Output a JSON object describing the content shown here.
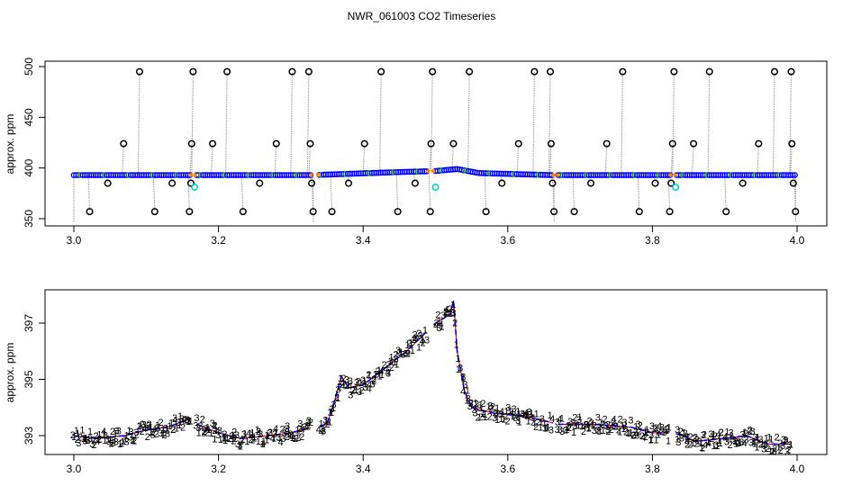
{
  "figure": {
    "title": "NWR_061003  CO2 Timeseries"
  },
  "chart_data": [
    {
      "type": "scatter",
      "panel": "top",
      "ylabel": "approx. ppm",
      "xlim": [
        3.0,
        4.0
      ],
      "ylim": [
        347,
        502
      ],
      "x_ticks": [
        3.0,
        3.2,
        3.4,
        3.6,
        3.8,
        4.0
      ],
      "x_tick_labels": [
        "3.0",
        "3.2",
        "3.4",
        "3.6",
        "3.8",
        "4.0"
      ],
      "y_ticks": [
        350,
        400,
        450,
        500
      ],
      "y_tick_labels": [
        "350",
        "400",
        "450",
        "500"
      ],
      "baseline": [
        [
          3.0,
          393
        ],
        [
          3.33,
          393
        ],
        [
          3.45,
          396
        ],
        [
          3.5,
          397
        ],
        [
          3.53,
          399
        ],
        [
          3.56,
          395
        ],
        [
          3.66,
          393
        ],
        [
          3.83,
          393
        ],
        [
          4.0,
          393
        ]
      ],
      "baseline_gaps": [
        [
          3.162,
          3.168
        ],
        [
          3.328,
          3.338
        ],
        [
          3.49,
          3.497
        ],
        [
          3.663,
          3.669
        ],
        [
          3.825,
          3.832
        ]
      ],
      "flag_points": [
        {
          "x": 3.02,
          "y": 357
        },
        {
          "x": 3.045,
          "y": 385
        },
        {
          "x": 3.067,
          "y": 424
        },
        {
          "x": 3.089,
          "y": 495
        },
        {
          "x": 3.11,
          "y": 357
        },
        {
          "x": 3.134,
          "y": 385
        },
        {
          "x": 3.158,
          "y": 357
        },
        {
          "x": 3.16,
          "y": 385
        },
        {
          "x": 3.161,
          "y": 424
        },
        {
          "x": 3.163,
          "y": 495
        },
        {
          "x": 3.19,
          "y": 424
        },
        {
          "x": 3.21,
          "y": 495
        },
        {
          "x": 3.232,
          "y": 357
        },
        {
          "x": 3.255,
          "y": 385
        },
        {
          "x": 3.278,
          "y": 424
        },
        {
          "x": 3.3,
          "y": 495
        },
        {
          "x": 3.323,
          "y": 495
        },
        {
          "x": 3.325,
          "y": 424
        },
        {
          "x": 3.327,
          "y": 385
        },
        {
          "x": 3.329,
          "y": 357
        },
        {
          "x": 3.355,
          "y": 357
        },
        {
          "x": 3.378,
          "y": 385
        },
        {
          "x": 3.4,
          "y": 424
        },
        {
          "x": 3.423,
          "y": 495
        },
        {
          "x": 3.446,
          "y": 357
        },
        {
          "x": 3.47,
          "y": 385
        },
        {
          "x": 3.491,
          "y": 357
        },
        {
          "x": 3.492,
          "y": 424
        },
        {
          "x": 3.494,
          "y": 495
        },
        {
          "x": 3.523,
          "y": 424
        },
        {
          "x": 3.545,
          "y": 495
        },
        {
          "x": 3.568,
          "y": 357
        },
        {
          "x": 3.59,
          "y": 385
        },
        {
          "x": 3.613,
          "y": 424
        },
        {
          "x": 3.635,
          "y": 495
        },
        {
          "x": 3.657,
          "y": 495
        },
        {
          "x": 3.658,
          "y": 424
        },
        {
          "x": 3.66,
          "y": 385
        },
        {
          "x": 3.662,
          "y": 357
        },
        {
          "x": 3.69,
          "y": 357
        },
        {
          "x": 3.713,
          "y": 385
        },
        {
          "x": 3.735,
          "y": 424
        },
        {
          "x": 3.757,
          "y": 495
        },
        {
          "x": 3.78,
          "y": 357
        },
        {
          "x": 3.802,
          "y": 385
        },
        {
          "x": 3.822,
          "y": 357
        },
        {
          "x": 3.824,
          "y": 385
        },
        {
          "x": 3.826,
          "y": 424
        },
        {
          "x": 3.828,
          "y": 495
        },
        {
          "x": 3.855,
          "y": 424
        },
        {
          "x": 3.877,
          "y": 495
        },
        {
          "x": 3.9,
          "y": 357
        },
        {
          "x": 3.923,
          "y": 385
        },
        {
          "x": 3.945,
          "y": 424
        },
        {
          "x": 3.967,
          "y": 495
        },
        {
          "x": 3.99,
          "y": 495
        },
        {
          "x": 3.991,
          "y": 424
        },
        {
          "x": 3.993,
          "y": 385
        },
        {
          "x": 3.996,
          "y": 357
        }
      ],
      "cyan_points": [
        {
          "x": 3.167,
          "y": 381
        },
        {
          "x": 3.5,
          "y": 381
        },
        {
          "x": 3.832,
          "y": 381
        }
      ],
      "colors": {
        "main": "#0000ff",
        "secondary": "#00aa00",
        "orange": "#ff8c00",
        "flag": "#000000",
        "spike": "#999999",
        "cyan": "#00cccc"
      }
    },
    {
      "type": "scatter",
      "panel": "bottom",
      "ylabel": "approx. ppm",
      "xlim": [
        3.0,
        4.0
      ],
      "ylim": [
        392.3,
        398.2
      ],
      "x_ticks": [
        3.0,
        3.2,
        3.4,
        3.6,
        3.8,
        4.0
      ],
      "x_tick_labels": [
        "3.0",
        "3.2",
        "3.4",
        "3.6",
        "3.8",
        "4.0"
      ],
      "y_ticks": [
        393,
        395,
        397
      ],
      "y_tick_labels": [
        "393",
        "395",
        "397"
      ],
      "series_glyphs": [
        "1",
        "2",
        "3",
        "4"
      ],
      "trend": [
        [
          3.0,
          393.0
        ],
        [
          3.03,
          392.9
        ],
        [
          3.07,
          393.0
        ],
        [
          3.1,
          393.2
        ],
        [
          3.13,
          393.3
        ],
        [
          3.16,
          393.6
        ],
        [
          3.17,
          393.4
        ],
        [
          3.2,
          393.1
        ],
        [
          3.23,
          392.9
        ],
        [
          3.27,
          393.0
        ],
        [
          3.3,
          393.1
        ],
        [
          3.33,
          393.3
        ],
        [
          3.35,
          393.4
        ],
        [
          3.36,
          394.2
        ],
        [
          3.37,
          395.1
        ],
        [
          3.38,
          394.7
        ],
        [
          3.4,
          394.8
        ],
        [
          3.43,
          395.4
        ],
        [
          3.46,
          396.0
        ],
        [
          3.5,
          397.0
        ],
        [
          3.52,
          397.3
        ],
        [
          3.525,
          397.8
        ],
        [
          3.53,
          396.0
        ],
        [
          3.54,
          394.6
        ],
        [
          3.55,
          394.0
        ],
        [
          3.58,
          393.8
        ],
        [
          3.62,
          393.7
        ],
        [
          3.655,
          393.5
        ],
        [
          3.67,
          393.4
        ],
        [
          3.72,
          393.4
        ],
        [
          3.77,
          393.3
        ],
        [
          3.8,
          393.1
        ],
        [
          3.83,
          393.1
        ],
        [
          3.86,
          392.8
        ],
        [
          3.9,
          392.9
        ],
        [
          3.93,
          393.0
        ],
        [
          3.96,
          392.7
        ],
        [
          3.99,
          392.7
        ]
      ],
      "gaps": [
        [
          3.162,
          3.168
        ],
        [
          3.328,
          3.338
        ],
        [
          3.49,
          3.497
        ],
        [
          3.663,
          3.669
        ],
        [
          3.825,
          3.832
        ]
      ],
      "colors": {
        "1": "#ff0000",
        "2": "#00bb00",
        "3": "#0000ff",
        "4": "#00cccc",
        "trend_dash": "#0000ff"
      }
    }
  ]
}
